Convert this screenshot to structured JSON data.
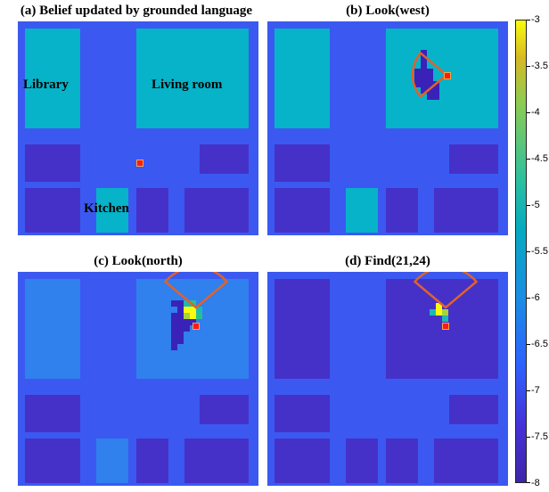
{
  "colors": {
    "background": "#3b59f0",
    "room_cyan": "#06b3c9",
    "room_blue": "#3080ee",
    "room_dark": "#4531c8",
    "robot": "#ff1a1a",
    "fov": "#e0622a",
    "yellow": "#f9fb0e",
    "lime": "#a8d23c",
    "green": "#27c28b",
    "teal": "#1fb8b3"
  },
  "panels": [
    {
      "title": "(a) Belief updated by grounded language",
      "background": "#3b59f0",
      "rooms": [
        {
          "name": "library",
          "label": "Library",
          "color": "#06b3c9"
        },
        {
          "name": "living-room",
          "label": "Living room",
          "color": "#06b3c9"
        },
        {
          "name": "room-mid-left",
          "label": "",
          "color": "#4531c8"
        },
        {
          "name": "room-mid-right",
          "label": "",
          "color": "#4531c8"
        },
        {
          "name": "room-bottom-left",
          "label": "",
          "color": "#4531c8"
        },
        {
          "name": "kitchen",
          "label": "Kitchen",
          "color": "#06b3c9"
        },
        {
          "name": "room-bottom-mid",
          "label": "",
          "color": "#4531c8"
        },
        {
          "name": "room-bottom-right",
          "label": "",
          "color": "#4531c8"
        }
      ]
    },
    {
      "title": "(b) Look(west)",
      "background": "#3b59f0",
      "rooms": [
        {
          "name": "library",
          "label": "",
          "color": "#06b3c9"
        },
        {
          "name": "living-room",
          "label": "",
          "color": "#06b3c9"
        },
        {
          "name": "room-mid-left",
          "label": "",
          "color": "#4531c8"
        },
        {
          "name": "room-mid-right",
          "label": "",
          "color": "#4531c8"
        },
        {
          "name": "room-bottom-left",
          "label": "",
          "color": "#4531c8"
        },
        {
          "name": "kitchen",
          "label": "",
          "color": "#06b3c9"
        },
        {
          "name": "room-bottom-mid",
          "label": "",
          "color": "#4531c8"
        },
        {
          "name": "room-bottom-right",
          "label": "",
          "color": "#4531c8"
        }
      ]
    },
    {
      "title": "(c) Look(north)",
      "background": "#3b59f0",
      "rooms": [
        {
          "name": "library",
          "label": "",
          "color": "#3080ee"
        },
        {
          "name": "living-room",
          "label": "",
          "color": "#3080ee"
        },
        {
          "name": "room-mid-left",
          "label": "",
          "color": "#4531c8"
        },
        {
          "name": "room-mid-right",
          "label": "",
          "color": "#4531c8"
        },
        {
          "name": "room-bottom-left",
          "label": "",
          "color": "#4531c8"
        },
        {
          "name": "kitchen",
          "label": "",
          "color": "#3080ee"
        },
        {
          "name": "room-bottom-mid",
          "label": "",
          "color": "#4531c8"
        },
        {
          "name": "room-bottom-right",
          "label": "",
          "color": "#4531c8"
        }
      ]
    },
    {
      "title": "(d) Find(21,24)",
      "background": "#3b59f0",
      "rooms": [
        {
          "name": "library",
          "label": "",
          "color": "#4531c8"
        },
        {
          "name": "living-room",
          "label": "",
          "color": "#4531c8"
        },
        {
          "name": "room-mid-left",
          "label": "",
          "color": "#4531c8"
        },
        {
          "name": "room-mid-right",
          "label": "",
          "color": "#4531c8"
        },
        {
          "name": "room-bottom-left",
          "label": "",
          "color": "#4531c8"
        },
        {
          "name": "kitchen",
          "label": "",
          "color": "#4531c8"
        },
        {
          "name": "room-bottom-mid",
          "label": "",
          "color": "#4531c8"
        },
        {
          "name": "room-bottom-right",
          "label": "",
          "color": "#4531c8"
        }
      ]
    }
  ],
  "chart_data": {
    "type": "heatmap",
    "colorbar": {
      "range": [
        -8,
        -3
      ],
      "ticks": [
        "-3",
        "-3.5",
        "-4",
        "-4.5",
        "-5",
        "-5.5",
        "-6",
        "-6.5",
        "-7",
        "-7.5",
        "-8"
      ],
      "colormap": "parula"
    }
  }
}
